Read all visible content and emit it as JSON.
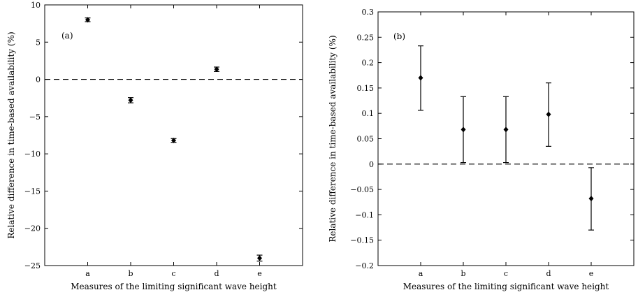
{
  "chart_data": [
    {
      "type": "scatter",
      "panel_label": "(a)",
      "xlabel": "Measures of the limiting significant wave height",
      "ylabel": "Relative difference in time-based availability (%)",
      "categories": [
        "a",
        "b",
        "c",
        "d",
        "e"
      ],
      "series": [
        {
          "values": [
            8.0,
            -2.8,
            -8.2,
            1.35,
            -24.0
          ],
          "error_low": [
            7.75,
            -3.15,
            -8.45,
            1.05,
            -24.4
          ],
          "error_high": [
            8.25,
            -2.45,
            -7.95,
            1.65,
            -23.6
          ]
        }
      ],
      "ylim": [
        -25,
        10
      ],
      "yticks": [
        -25,
        -20,
        -15,
        -10,
        -5,
        0,
        5,
        10
      ],
      "ytick_labels": [
        "−25",
        "−20",
        "−15",
        "−10",
        "−5",
        "0",
        "5",
        "10"
      ],
      "reference_line": 0,
      "grid": false
    },
    {
      "type": "scatter",
      "panel_label": "(b)",
      "xlabel": "Measures of the limiting significant wave height",
      "ylabel": "Relative difference in time-based availability (%)",
      "categories": [
        "a",
        "b",
        "c",
        "d",
        "e"
      ],
      "series": [
        {
          "values": [
            0.17,
            0.068,
            0.068,
            0.098,
            -0.068
          ],
          "error_low": [
            0.106,
            0.003,
            0.003,
            0.035,
            -0.13
          ],
          "error_high": [
            0.233,
            0.133,
            0.133,
            0.16,
            -0.007
          ]
        }
      ],
      "ylim": [
        -0.2,
        0.3
      ],
      "yticks": [
        -0.2,
        -0.15,
        -0.1,
        -0.05,
        0,
        0.05,
        0.1,
        0.15,
        0.2,
        0.25,
        0.3
      ],
      "ytick_labels": [
        "−0.2",
        "−0.15",
        "−0.1",
        "−0.05",
        "0",
        "0.05",
        "0.1",
        "0.15",
        "0.2",
        "0.25",
        "0.3"
      ],
      "reference_line": 0,
      "grid": false
    }
  ]
}
